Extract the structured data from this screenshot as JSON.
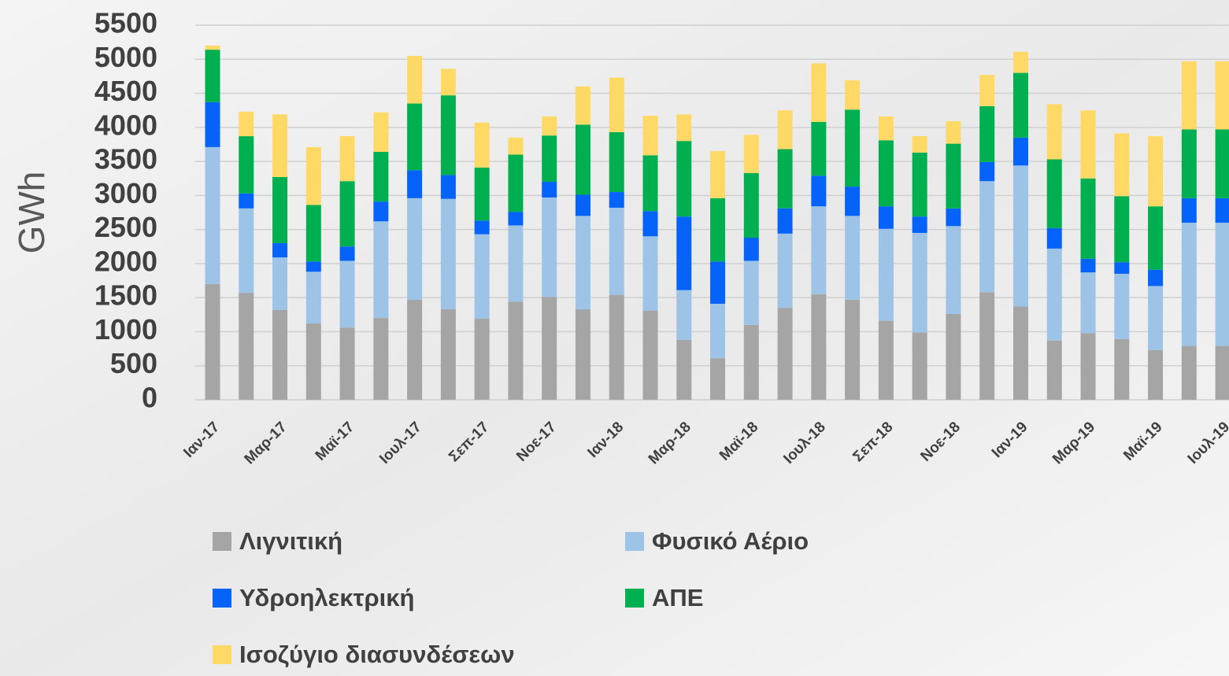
{
  "chart_data": {
    "type": "stacked-bar",
    "y_label": "GWh",
    "categories": [
      "Ιαν-17",
      null,
      "Μαρ-17",
      null,
      "Μαϊ-17",
      null,
      "Ιουλ-17",
      null,
      "Σεπ-17",
      null,
      "Νοε-17",
      null,
      "Ιαν-18",
      null,
      "Μαρ-18",
      null,
      "Μαϊ-18",
      null,
      "Ιουλ-18",
      null,
      "Σεπ-18",
      null,
      "Νοε-18",
      null,
      "Ιαν-19",
      null,
      "Μαρ-19",
      null,
      "Μαϊ-19",
      null,
      "Ιουλ-19"
    ],
    "series": [
      {
        "name": "Λιγνιτική",
        "color": "#a5a5a5",
        "values": [
          1700,
          1570,
          1320,
          1120,
          1060,
          1200,
          1470,
          1330,
          1190,
          1440,
          1510,
          1330,
          1540,
          1310,
          880,
          610,
          1100,
          1350,
          1550,
          1470,
          1160,
          990,
          1260,
          1580,
          1370,
          870,
          980,
          890,
          730,
          790,
          790
        ]
      },
      {
        "name": "Φυσικό Αέριο",
        "color": "#9dc3e6",
        "values": [
          2010,
          1240,
          770,
          760,
          980,
          1420,
          1490,
          1620,
          1240,
          1120,
          1460,
          1370,
          1280,
          1090,
          730,
          800,
          940,
          1090,
          1290,
          1230,
          1350,
          1460,
          1290,
          1630,
          2070,
          1350,
          890,
          960,
          940,
          1810,
          1810
        ]
      },
      {
        "name": "Υδροηλεκτρική",
        "color": "#0563fa",
        "values": [
          660,
          220,
          210,
          150,
          210,
          290,
          410,
          350,
          200,
          200,
          230,
          310,
          230,
          370,
          1080,
          620,
          340,
          370,
          450,
          430,
          330,
          240,
          260,
          280,
          410,
          300,
          200,
          170,
          240,
          360,
          360
        ]
      },
      {
        "name": "ΑΠΕ",
        "color": "#00b050",
        "values": [
          770,
          840,
          970,
          830,
          960,
          730,
          980,
          1170,
          780,
          840,
          680,
          1030,
          880,
          820,
          1110,
          930,
          950,
          870,
          790,
          1130,
          970,
          940,
          950,
          820,
          950,
          1010,
          1180,
          970,
          930,
          1010,
          1010
        ]
      },
      {
        "name": "Ισοζύγιο διασυνδέσεων",
        "color": "#ffd966",
        "values": [
          60,
          360,
          920,
          850,
          660,
          580,
          700,
          390,
          660,
          250,
          280,
          560,
          800,
          580,
          390,
          690,
          560,
          570,
          860,
          430,
          350,
          240,
          330,
          460,
          310,
          810,
          1000,
          920,
          1030,
          1000,
          1000
        ]
      }
    ],
    "ylim": [
      0,
      5500
    ],
    "yticks": [
      0,
      500,
      1000,
      1500,
      2000,
      2500,
      3000,
      3500,
      4000,
      4500,
      5000,
      5500
    ],
    "grid": true
  }
}
